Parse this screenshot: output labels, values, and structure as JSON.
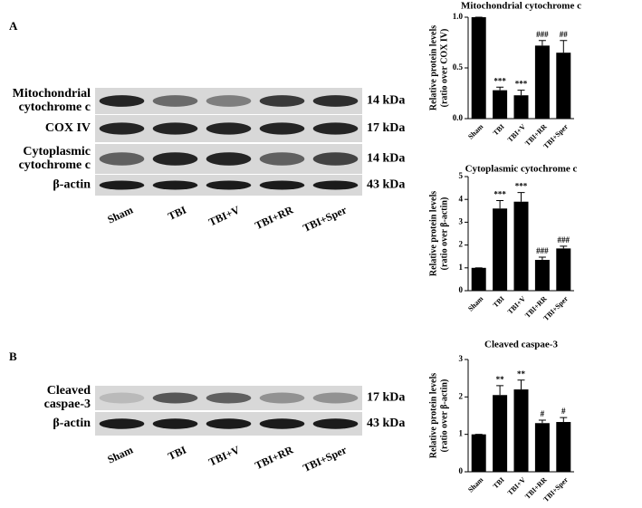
{
  "panels": {
    "a": "A",
    "b": "B"
  },
  "blots": [
    {
      "lanes": [
        "Sham",
        "TBI",
        "TBI+V",
        "TBI+RR",
        "TBI+Sper"
      ],
      "rows": [
        {
          "label": [
            "Mitochondrial",
            "cytochrome c"
          ],
          "size": "14 kDa"
        },
        {
          "label": [
            "COX IV"
          ],
          "size": "17 kDa"
        },
        {
          "label": [
            "Cytoplasmic",
            "cytochrome c"
          ],
          "size": "14 kDa"
        },
        {
          "label": [
            "β-actin"
          ],
          "size": "43 kDa"
        }
      ]
    },
    {
      "lanes": [
        "Sham",
        "TBI",
        "TBI+V",
        "TBI+RR",
        "TBI+Sper"
      ],
      "rows": [
        {
          "label": [
            "Cleaved",
            "caspae-3"
          ],
          "size": "17 kDa"
        },
        {
          "label": [
            "β-actin"
          ],
          "size": "43 kDa"
        }
      ]
    }
  ],
  "chart_data": [
    {
      "type": "bar",
      "title": "Mitochondrial cytochrome c",
      "ylabel": [
        "Relative protein levels",
        "(ratio over COX IV)"
      ],
      "categories": [
        "Sham",
        "TBI",
        "TBI+V",
        "TBI+RR",
        "TBI+Sper"
      ],
      "values": [
        1.0,
        0.28,
        0.23,
        0.72,
        0.65
      ],
      "errors": [
        0,
        0.03,
        0.05,
        0.05,
        0.12
      ],
      "annotations": [
        null,
        "***",
        "***",
        "###",
        "##"
      ],
      "color": "#000000",
      "ylim": [
        0,
        1.0
      ],
      "yticks": [
        {
          "value": 0,
          "label": "0.0"
        },
        {
          "value": 0.5,
          "label": "0.5"
        },
        {
          "value": 1.0,
          "label": "1.0"
        }
      ]
    },
    {
      "type": "bar",
      "title": "Cytoplasmic cytochrome c",
      "ylabel": [
        "Relative protein levels",
        "(ratio over β-actin)"
      ],
      "categories": [
        "Sham",
        "TBI",
        "TBI+V",
        "TBI+RR",
        "TBI+Sper"
      ],
      "values": [
        1.0,
        3.6,
        3.9,
        1.35,
        1.85
      ],
      "errors": [
        0,
        0.35,
        0.4,
        0.12,
        0.1
      ],
      "annotations": [
        null,
        "***",
        "***",
        "###",
        "###"
      ],
      "color": "#000000",
      "ylim": [
        0,
        5
      ],
      "yticks": [
        0,
        1,
        2,
        3,
        4,
        5
      ]
    },
    {
      "type": "bar",
      "title": "Cleaved caspae-3",
      "ylabel": [
        "Relative protein levels",
        "(ratio over β-actin)"
      ],
      "categories": [
        "Sham",
        "TBI",
        "TBI+V",
        "TBI+RR",
        "TBI+Sper"
      ],
      "values": [
        1.0,
        2.05,
        2.2,
        1.3,
        1.33
      ],
      "errors": [
        0,
        0.25,
        0.25,
        0.08,
        0.12
      ],
      "annotations": [
        null,
        "**",
        "**",
        "#",
        "#"
      ],
      "color": "#000000",
      "ylim": [
        0,
        3
      ],
      "yticks": [
        0,
        1,
        2,
        3
      ]
    }
  ]
}
